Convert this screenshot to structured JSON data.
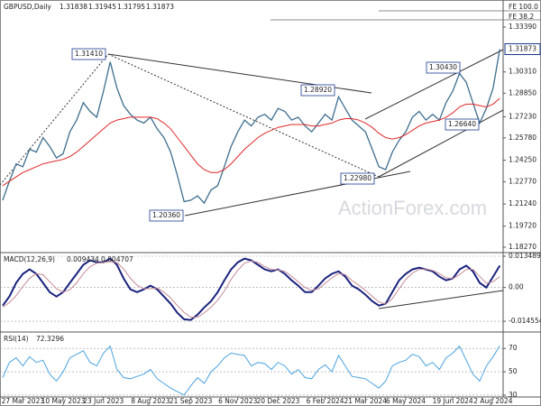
{
  "chart_data": [
    {
      "type": "line",
      "title": "GBPUSD,Daily",
      "readout": [
        "1.31838",
        "1.31945",
        "1.31795",
        "1.31873"
      ],
      "last_price_label": "1.31873",
      "watermark": "ActionForex.com",
      "annotations": [
        "1.31410",
        "1.28920",
        "1.20360",
        "1.22980",
        "1.30430",
        "1.26640",
        "FE 100.0",
        "FE 38.2"
      ],
      "categories": [
        null,
        null,
        null,
        "27 Mar 2023",
        null,
        null,
        null,
        null,
        null,
        "10 May 2023",
        null,
        null,
        null,
        null,
        null,
        "23 Jun 2023",
        null,
        null,
        null,
        null,
        null,
        null,
        "8 Aug 2023",
        null,
        null,
        null,
        null,
        null,
        "21 Sep 2023",
        null,
        null,
        null,
        null,
        null,
        null,
        "6 Nov 2023",
        null,
        null,
        null,
        null,
        null,
        "20 Dec 2023",
        null,
        null,
        null,
        null,
        null,
        null,
        "6 Feb 2024",
        null,
        null,
        null,
        null,
        null,
        "21 Mar 2024",
        null,
        null,
        null,
        null,
        null,
        "6 May 2024",
        null,
        null,
        null,
        null,
        null,
        null,
        "19 Jun 2024",
        null,
        null,
        null,
        null,
        null,
        "2 Aug 2024",
        null
      ],
      "ylim": [
        1.179,
        1.3525
      ],
      "yticks": [
        {
          "value": 1.3339,
          "label": "1.33390"
        },
        {
          "value": 1.3031,
          "label": "1.30310"
        },
        {
          "value": 1.2885,
          "label": "1.28850"
        },
        {
          "value": 1.2723,
          "label": "1.27230"
        },
        {
          "value": 1.2578,
          "label": "1.25780"
        },
        {
          "value": 1.2425,
          "label": "1.24250"
        },
        {
          "value": 1.2277,
          "label": "1.22770"
        },
        {
          "value": 1.2124,
          "label": "1.21240"
        },
        {
          "value": 1.1972,
          "label": "1.19720"
        },
        {
          "value": 1.1827,
          "label": "1.18270"
        }
      ],
      "grid": false,
      "series": [
        {
          "color": "#3d6d8e",
          "width": 1.3,
          "values": [
            1.215,
            1.228,
            1.24,
            1.238,
            1.25,
            1.248,
            1.258,
            1.252,
            1.244,
            1.247,
            1.262,
            1.27,
            1.282,
            1.276,
            1.272,
            1.29,
            1.31,
            1.292,
            1.28,
            1.274,
            1.27,
            1.268,
            1.272,
            1.264,
            1.258,
            1.248,
            1.232,
            1.214,
            1.215,
            1.218,
            1.213,
            1.222,
            1.225,
            1.238,
            1.252,
            1.262,
            1.27,
            1.266,
            1.272,
            1.274,
            1.27,
            1.278,
            1.276,
            1.27,
            1.272,
            1.266,
            1.262,
            1.268,
            1.274,
            1.27,
            1.286,
            1.278,
            1.27,
            1.266,
            1.262,
            1.25,
            1.238,
            1.236,
            1.248,
            1.256,
            1.262,
            1.272,
            1.276,
            1.27,
            1.274,
            1.27,
            1.282,
            1.29,
            1.302,
            1.296,
            1.282,
            1.268,
            1.278,
            1.292,
            1.31873
          ]
        },
        {
          "color": "#e02828",
          "width": 1,
          "values": [
            1.225,
            1.228,
            1.231,
            1.234,
            1.236,
            1.238,
            1.24,
            1.241,
            1.242,
            1.243,
            1.245,
            1.248,
            1.252,
            1.256,
            1.26,
            1.264,
            1.268,
            1.27,
            1.271,
            1.272,
            1.272,
            1.272,
            1.272,
            1.271,
            1.268,
            1.264,
            1.258,
            1.252,
            1.246,
            1.24,
            1.236,
            1.234,
            1.234,
            1.236,
            1.24,
            1.245,
            1.25,
            1.254,
            1.258,
            1.261,
            1.263,
            1.265,
            1.266,
            1.267,
            1.267,
            1.267,
            1.266,
            1.266,
            1.267,
            1.268,
            1.27,
            1.271,
            1.271,
            1.27,
            1.268,
            1.265,
            1.261,
            1.258,
            1.257,
            1.258,
            1.26,
            1.263,
            1.266,
            1.268,
            1.269,
            1.27,
            1.272,
            1.275,
            1.279,
            1.281,
            1.281,
            1.28,
            1.279,
            1.281,
            1.285
          ]
        }
      ]
    },
    {
      "type": "line",
      "title": "MACD(12,26,9)",
      "readout": [
        "0.009434",
        "0.004707"
      ],
      "ylim": [
        -0.0192,
        0.01505
      ],
      "yticks": [
        0.013489,
        {
          "value": 0,
          "label": "0.00"
        },
        -0.014554
      ],
      "grid": true,
      "series": [
        {
          "color": "#1a237e",
          "width": 2,
          "values": [
            -0.0078,
            -0.0039,
            0.002,
            0.0059,
            0.0078,
            0.0059,
            0.002,
            -0.002,
            -0.0039,
            -0.002,
            0.002,
            0.0059,
            0.0098,
            0.0117,
            0.0109,
            0.0109,
            0.0125,
            0.0098,
            0.0039,
            -0.0008,
            -0.002,
            -0.0008,
            0.0008,
            -0.0008,
            -0.0039,
            -0.007,
            -0.0109,
            -0.0137,
            -0.014,
            -0.0117,
            -0.0086,
            -0.0059,
            -0.002,
            0.0031,
            0.0078,
            0.0109,
            0.0125,
            0.0117,
            0.0098,
            0.0078,
            0.007,
            0.0078,
            0.0059,
            0.0031,
            0.0008,
            -0.002,
            -0.002,
            0.0008,
            0.0039,
            0.0059,
            0.007,
            0.0047,
            0.0008,
            -0.0008,
            -0.0031,
            -0.0059,
            -0.0078,
            -0.007,
            -0.002,
            0.0031,
            0.0059,
            0.0078,
            0.0086,
            0.0078,
            0.007,
            0.0047,
            0.0031,
            0.0039,
            0.0078,
            0.0094,
            0.007,
            0.002,
            0.0,
            0.0047,
            0.009434
          ]
        },
        {
          "color": "#c48a96",
          "width": 1,
          "values": [
            -0.0085,
            -0.0065,
            -0.0035,
            0.0005,
            0.004,
            0.006,
            0.0055,
            0.0025,
            -0.0005,
            -0.002,
            -0.001,
            0.002,
            0.006,
            0.009,
            0.0105,
            0.0108,
            0.0112,
            0.0108,
            0.008,
            0.004,
            0.001,
            -0.0005,
            -0.0005,
            -0.0002,
            -0.002,
            -0.0045,
            -0.0078,
            -0.0108,
            -0.0128,
            -0.0128,
            -0.011,
            -0.0085,
            -0.0055,
            -0.0015,
            0.0035,
            0.0075,
            0.0105,
            0.0115,
            0.0108,
            0.009,
            0.0078,
            0.0076,
            0.007,
            0.0048,
            0.0025,
            0.0,
            -0.0012,
            -0.0006,
            0.0018,
            0.0042,
            0.006,
            0.0056,
            0.003,
            0.001,
            -0.0012,
            -0.0038,
            -0.0062,
            -0.0072,
            -0.0048,
            -0.0005,
            0.0035,
            0.0062,
            0.0078,
            0.008,
            0.0074,
            0.006,
            0.0042,
            0.0038,
            0.0055,
            0.0078,
            0.0078,
            0.0048,
            0.0018,
            0.0025,
            0.004707
          ]
        }
      ]
    },
    {
      "type": "line",
      "title": "RSI(14)",
      "readout": [
        "72.3296"
      ],
      "ylim": [
        28.4,
        84.1
      ],
      "yticks": [
        70,
        50,
        30
      ],
      "grid": true,
      "series": [
        {
          "color": "#4aa3df",
          "width": 1,
          "values": [
            45,
            58,
            62,
            55,
            63,
            58,
            60,
            48,
            42,
            50,
            62,
            65,
            68,
            58,
            55,
            66,
            72,
            52,
            45,
            44,
            46,
            48,
            52,
            44,
            40,
            36,
            33,
            30,
            38,
            45,
            40,
            50,
            55,
            62,
            66,
            65,
            64,
            55,
            58,
            57,
            52,
            58,
            55,
            48,
            52,
            45,
            44,
            52,
            56,
            50,
            64,
            55,
            46,
            45,
            44,
            40,
            36,
            42,
            55,
            58,
            60,
            65,
            63,
            55,
            58,
            52,
            62,
            66,
            72,
            60,
            48,
            42,
            55,
            63,
            72.3296
          ]
        }
      ]
    }
  ]
}
